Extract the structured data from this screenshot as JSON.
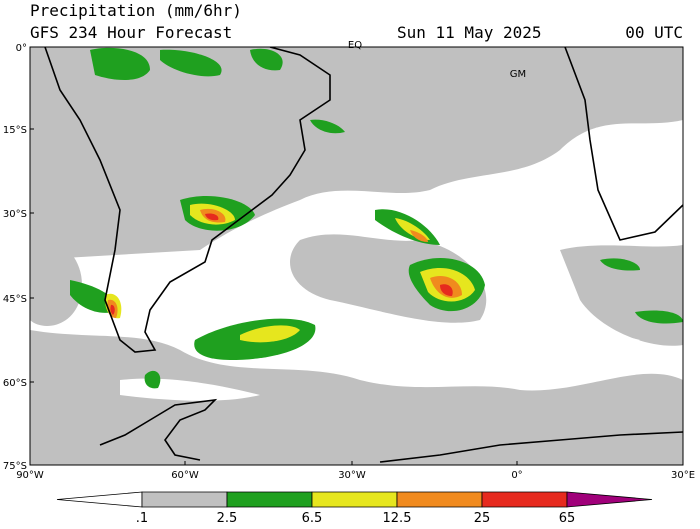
{
  "header": {
    "title": "Precipitation (mm/6hr)",
    "subtitle": "GFS 234 Hour Forecast",
    "date": "Sun 11 May 2025",
    "time": "00 UTC"
  },
  "map": {
    "lat_labels": [
      "0°",
      "15°S",
      "30°S",
      "45°S",
      "60°S",
      "75°S"
    ],
    "lon_labels": [
      "90°W",
      "60°W",
      "30°W",
      "0°",
      "30°E"
    ],
    "place_labels": [
      "EQ",
      "GM"
    ]
  },
  "colorbar": {
    "labels": [
      ".1",
      "2.5",
      "6.5",
      "12.5",
      "25",
      "65"
    ],
    "colors": [
      "#ffffff",
      "#c0c0c0",
      "#1fa01f",
      "#e6e61e",
      "#f08a1e",
      "#e62a1e",
      "#a0007a"
    ]
  }
}
